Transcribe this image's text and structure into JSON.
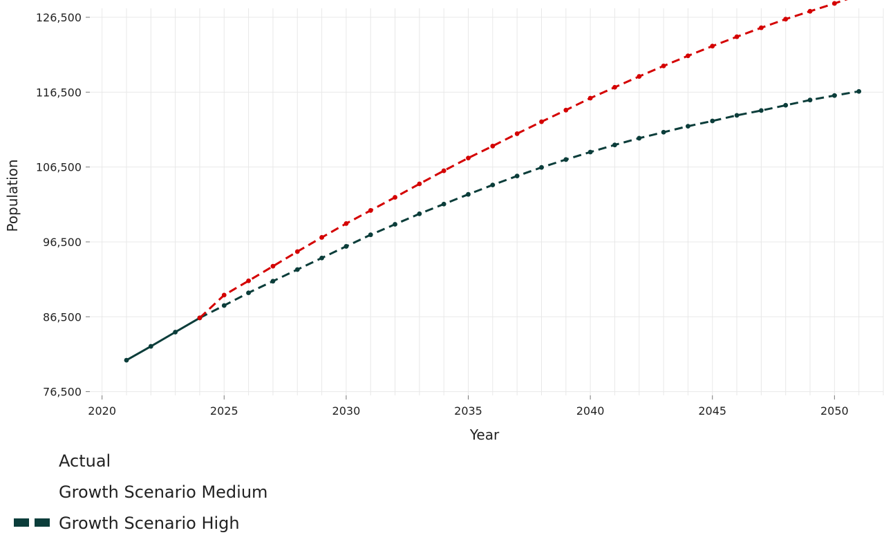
{
  "chart_data": {
    "type": "line",
    "title": "",
    "xlabel": "Year",
    "ylabel": "Population",
    "xlim": [
      2019.5,
      2052
    ],
    "ylim": [
      76000,
      127700
    ],
    "x_ticks": [
      2020,
      2025,
      2030,
      2035,
      2040,
      2045,
      2050
    ],
    "x_tick_labels": [
      "2020",
      "2025",
      "2030",
      "2035",
      "2040",
      "2045",
      "2050"
    ],
    "y_ticks": [
      76500,
      86500,
      96500,
      106500,
      116500,
      126500
    ],
    "y_tick_labels": [
      "76,500",
      "86,500",
      "96,500",
      "106,500",
      "116,500",
      "126,500"
    ],
    "grid": true,
    "legend_position": "bottom-left",
    "series": [
      {
        "name": "Actual",
        "color": "#0b3d3a",
        "style": "solid",
        "show_legend_key": false,
        "x": [
          2021,
          2022,
          2023,
          2024
        ],
        "values": [
          80700,
          82550,
          84450,
          86350
        ]
      },
      {
        "name": "Growth Scenario Medium",
        "color": "#0b3d3a",
        "style": "dashed",
        "show_legend_key": true,
        "x": [
          2024,
          2025,
          2026,
          2027,
          2028,
          2029,
          2030,
          2031,
          2032,
          2033,
          2034,
          2035,
          2036,
          2037,
          2038,
          2039,
          2040,
          2041,
          2042,
          2043,
          2044,
          2045,
          2046,
          2047,
          2048,
          2049,
          2050,
          2051
        ],
        "values": [
          86350,
          88000,
          89700,
          91250,
          92800,
          94350,
          95900,
          97450,
          98850,
          100250,
          101550,
          102850,
          104100,
          105300,
          106450,
          107500,
          108500,
          109450,
          110350,
          111150,
          111950,
          112650,
          113400,
          114050,
          114750,
          115450,
          116050,
          116600
        ]
      },
      {
        "name": "Growth Scenario High",
        "color": "#d40000",
        "style": "dashed",
        "show_legend_key": true,
        "x": [
          2024,
          2025,
          2026,
          2027,
          2028,
          2029,
          2030,
          2031,
          2032,
          2033,
          2034,
          2035,
          2036,
          2037,
          2038,
          2039,
          2040,
          2041,
          2042,
          2043,
          2044,
          2045,
          2046,
          2047,
          2048,
          2049,
          2050,
          2051
        ],
        "values": [
          86350,
          89400,
          91300,
          93250,
          95200,
          97100,
          98950,
          100700,
          102450,
          104250,
          106000,
          107700,
          109300,
          110950,
          112550,
          114100,
          115700,
          117150,
          118600,
          120000,
          121350,
          122650,
          123900,
          125100,
          126250,
          127300,
          128350,
          129450
        ]
      }
    ]
  }
}
